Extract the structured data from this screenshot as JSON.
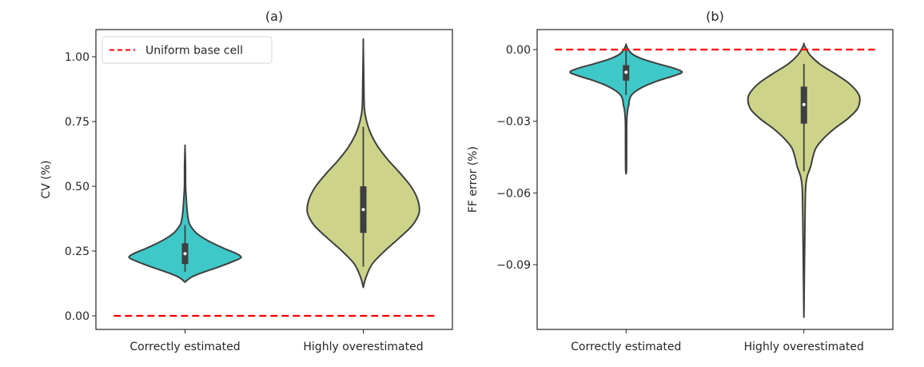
{
  "chart_data": [
    {
      "type": "violin",
      "panel": "a",
      "title": "(a)",
      "xlabel": "",
      "ylabel": "CV (%)",
      "ylim": [
        -0.05,
        1.1
      ],
      "yticks": [
        0.0,
        0.25,
        0.5,
        0.75,
        1.0
      ],
      "ytick_labels": [
        "0.00",
        "0.25",
        "0.50",
        "0.75",
        "1.00"
      ],
      "categories": [
        "Correctly estimated",
        "Highly overestimated"
      ],
      "legend": {
        "position": "top-left",
        "entries": [
          {
            "label": "Uniform base cell",
            "style": "dashed",
            "color": "#ff0000"
          }
        ]
      },
      "reference_line": {
        "y": 0.0,
        "label": "Uniform base cell",
        "color": "#ff0000"
      },
      "violins": [
        {
          "category": "Correctly estimated",
          "color": "#3fc8c8",
          "min": 0.13,
          "max": 0.65,
          "whisker_low": 0.17,
          "whisker_high": 0.35,
          "q1": 0.2,
          "median": 0.24,
          "q3": 0.28,
          "density_profile": [
            [
              0.13,
              0.0
            ],
            [
              0.15,
              0.12
            ],
            [
              0.17,
              0.35
            ],
            [
              0.19,
              0.62
            ],
            [
              0.21,
              0.86
            ],
            [
              0.225,
              1.0
            ],
            [
              0.24,
              0.92
            ],
            [
              0.26,
              0.7
            ],
            [
              0.28,
              0.5
            ],
            [
              0.3,
              0.33
            ],
            [
              0.32,
              0.2
            ],
            [
              0.34,
              0.12
            ],
            [
              0.36,
              0.07
            ],
            [
              0.4,
              0.04
            ],
            [
              0.46,
              0.02
            ],
            [
              0.5,
              0.01
            ],
            [
              0.58,
              0.008
            ],
            [
              0.65,
              0.0
            ]
          ]
        },
        {
          "category": "Highly overestimated",
          "color": "#cdd48a",
          "min": 0.11,
          "max": 1.05,
          "whisker_low": 0.19,
          "whisker_high": 0.73,
          "q1": 0.32,
          "median": 0.41,
          "q3": 0.5,
          "density_profile": [
            [
              0.11,
              0.0
            ],
            [
              0.15,
              0.05
            ],
            [
              0.2,
              0.16
            ],
            [
              0.25,
              0.38
            ],
            [
              0.3,
              0.64
            ],
            [
              0.35,
              0.88
            ],
            [
              0.4,
              1.0
            ],
            [
              0.45,
              0.97
            ],
            [
              0.5,
              0.85
            ],
            [
              0.55,
              0.66
            ],
            [
              0.6,
              0.45
            ],
            [
              0.65,
              0.27
            ],
            [
              0.7,
              0.14
            ],
            [
              0.75,
              0.06
            ],
            [
              0.8,
              0.02
            ],
            [
              0.9,
              0.01
            ],
            [
              1.05,
              0.0
            ]
          ]
        }
      ]
    },
    {
      "type": "violin",
      "panel": "b",
      "title": "(b)",
      "xlabel": "",
      "ylabel": "FF error (%)",
      "ylim": [
        -0.117,
        0.008
      ],
      "yticks": [
        0.0,
        -0.03,
        -0.06,
        -0.09
      ],
      "ytick_labels": [
        "0.00",
        "−0.03",
        "−0.06",
        "−0.09"
      ],
      "categories": [
        "Correctly estimated",
        "Highly overestimated"
      ],
      "reference_line": {
        "y": 0.0,
        "color": "#ff0000"
      },
      "violins": [
        {
          "category": "Correctly estimated",
          "color": "#3fc8c8",
          "min": -0.052,
          "max": 0.002,
          "whisker_low": -0.019,
          "whisker_high": 0.0,
          "q1": -0.013,
          "median": -0.0095,
          "q3": -0.0065,
          "density_profile": [
            [
              0.002,
              0.0
            ],
            [
              0.0,
              0.04
            ],
            [
              -0.002,
              0.12
            ],
            [
              -0.004,
              0.3
            ],
            [
              -0.006,
              0.58
            ],
            [
              -0.008,
              0.88
            ],
            [
              -0.0095,
              1.0
            ],
            [
              -0.011,
              0.85
            ],
            [
              -0.013,
              0.58
            ],
            [
              -0.015,
              0.36
            ],
            [
              -0.017,
              0.2
            ],
            [
              -0.019,
              0.1
            ],
            [
              -0.021,
              0.06
            ],
            [
              -0.023,
              0.05
            ],
            [
              -0.025,
              0.03
            ],
            [
              -0.03,
              0.012
            ],
            [
              -0.04,
              0.01
            ],
            [
              -0.05,
              0.008
            ],
            [
              -0.052,
              0.0
            ]
          ]
        },
        {
          "category": "Highly overestimated",
          "color": "#cdd48a",
          "min": -0.112,
          "max": 0.002,
          "whisker_low": -0.051,
          "whisker_high": -0.006,
          "q1": -0.031,
          "median": -0.023,
          "q3": -0.0155,
          "density_profile": [
            [
              0.002,
              0.0
            ],
            [
              -0.002,
              0.1
            ],
            [
              -0.006,
              0.28
            ],
            [
              -0.01,
              0.55
            ],
            [
              -0.014,
              0.8
            ],
            [
              -0.018,
              0.96
            ],
            [
              -0.021,
              1.0
            ],
            [
              -0.025,
              0.95
            ],
            [
              -0.029,
              0.78
            ],
            [
              -0.033,
              0.55
            ],
            [
              -0.037,
              0.36
            ],
            [
              -0.041,
              0.22
            ],
            [
              -0.045,
              0.16
            ],
            [
              -0.049,
              0.12
            ],
            [
              -0.053,
              0.06
            ],
            [
              -0.058,
              0.03
            ],
            [
              -0.07,
              0.02
            ],
            [
              -0.09,
              0.01
            ],
            [
              -0.112,
              0.0
            ]
          ]
        }
      ]
    }
  ]
}
